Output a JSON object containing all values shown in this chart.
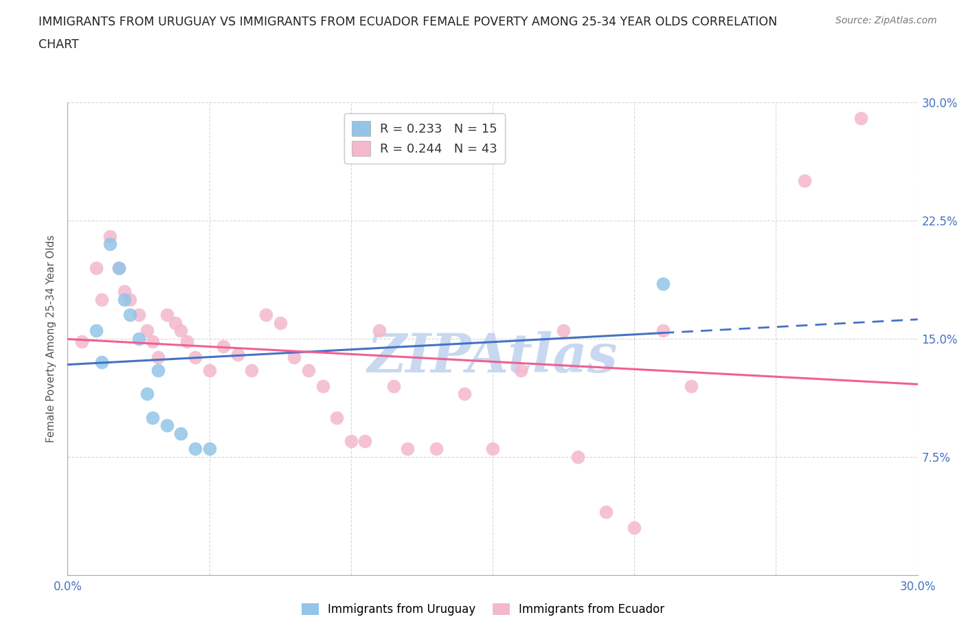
{
  "title_line1": "IMMIGRANTS FROM URUGUAY VS IMMIGRANTS FROM ECUADOR FEMALE POVERTY AMONG 25-34 YEAR OLDS CORRELATION",
  "title_line2": "CHART",
  "source_text": "Source: ZipAtlas.com",
  "ylabel": "Female Poverty Among 25-34 Year Olds",
  "xlim": [
    0.0,
    0.3
  ],
  "ylim": [
    0.0,
    0.3
  ],
  "yticks": [
    0.0,
    0.075,
    0.15,
    0.225,
    0.3
  ],
  "ytick_labels": [
    "",
    "7.5%",
    "15.0%",
    "22.5%",
    "30.0%"
  ],
  "xticks": [
    0.0,
    0.05,
    0.1,
    0.15,
    0.2,
    0.25,
    0.3
  ],
  "xtick_labels_show": [
    "0.0%",
    "30.0%"
  ],
  "uruguay_R": 0.233,
  "uruguay_N": 15,
  "ecuador_R": 0.244,
  "ecuador_N": 43,
  "uruguay_color": "#92C5E8",
  "ecuador_color": "#F4B8CC",
  "uruguay_line_color": "#4472C4",
  "ecuador_line_color": "#F06090",
  "background_color": "#FFFFFF",
  "watermark_color": "#C8D8F0",
  "grid_color": "#CCCCCC",
  "uruguay_x": [
    0.01,
    0.012,
    0.015,
    0.018,
    0.02,
    0.022,
    0.025,
    0.028,
    0.03,
    0.032,
    0.035,
    0.04,
    0.045,
    0.05,
    0.21
  ],
  "uruguay_y": [
    0.155,
    0.135,
    0.21,
    0.195,
    0.175,
    0.165,
    0.15,
    0.115,
    0.1,
    0.13,
    0.095,
    0.09,
    0.08,
    0.08,
    0.185
  ],
  "ecuador_x": [
    0.005,
    0.01,
    0.012,
    0.015,
    0.018,
    0.02,
    0.022,
    0.025,
    0.028,
    0.03,
    0.032,
    0.035,
    0.038,
    0.04,
    0.042,
    0.045,
    0.05,
    0.055,
    0.06,
    0.065,
    0.07,
    0.075,
    0.08,
    0.085,
    0.09,
    0.095,
    0.1,
    0.105,
    0.11,
    0.115,
    0.12,
    0.13,
    0.14,
    0.15,
    0.16,
    0.175,
    0.18,
    0.19,
    0.2,
    0.21,
    0.22,
    0.26,
    0.28
  ],
  "ecuador_y": [
    0.148,
    0.195,
    0.175,
    0.215,
    0.195,
    0.18,
    0.175,
    0.165,
    0.155,
    0.148,
    0.138,
    0.165,
    0.16,
    0.155,
    0.148,
    0.138,
    0.13,
    0.145,
    0.14,
    0.13,
    0.165,
    0.16,
    0.138,
    0.13,
    0.12,
    0.1,
    0.085,
    0.085,
    0.155,
    0.12,
    0.08,
    0.08,
    0.115,
    0.08,
    0.13,
    0.155,
    0.075,
    0.04,
    0.03,
    0.155,
    0.12,
    0.25,
    0.29
  ]
}
